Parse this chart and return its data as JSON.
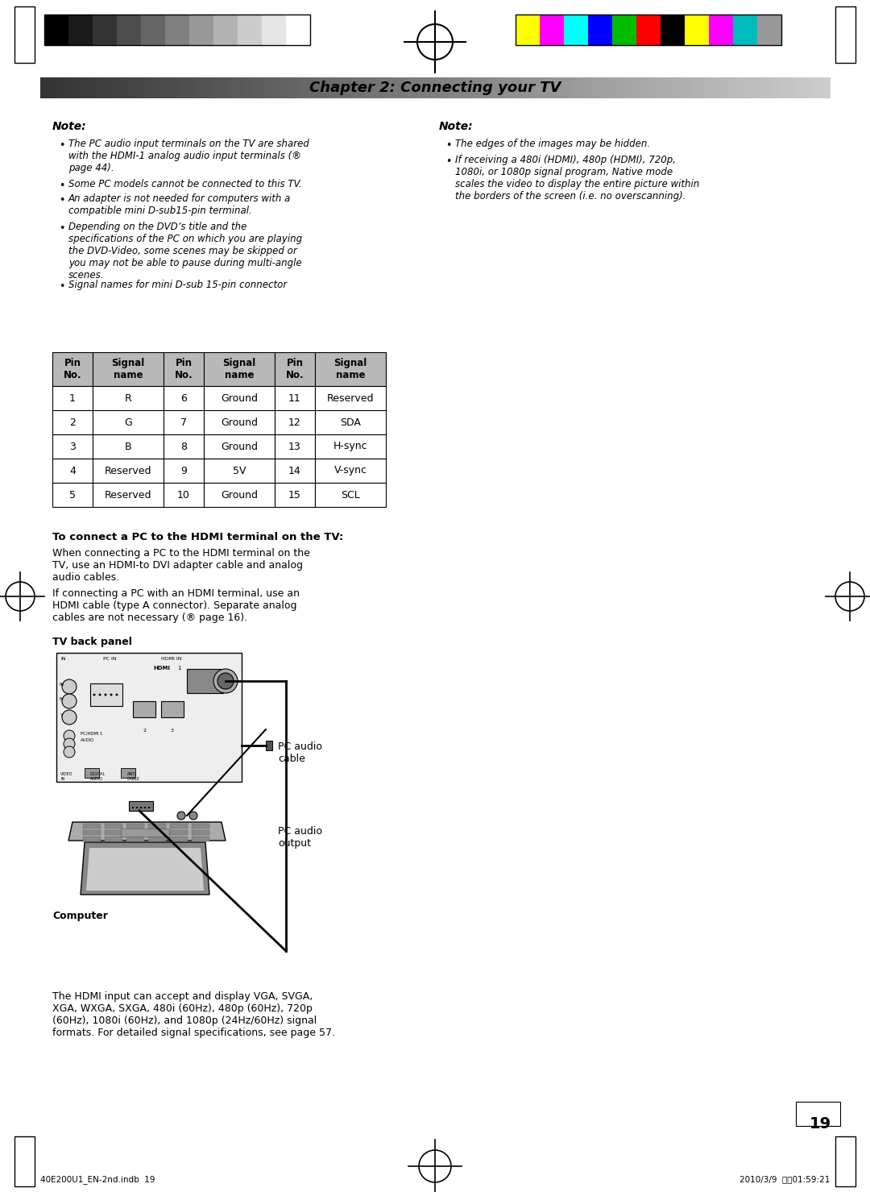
{
  "page_bg": "#ffffff",
  "chapter_title": "Chapter 2: Connecting your TV",
  "note_left_title": "Note:",
  "note_left_bullets": [
    "The PC audio input terminals on the TV are shared\nwith the HDMI-1 analog audio input terminals (®\npage 44).",
    "Some PC models cannot be connected to this TV.",
    "An adapter is not needed for computers with a\ncompatible mini D-sub15-pin terminal.",
    "Depending on the DVD’s title and the\nspecifications of the PC on which you are playing\nthe DVD-Video, some scenes may be skipped or\nyou may not be able to pause during multi-angle\nscenes.",
    "Signal names for mini D-sub 15-pin connector"
  ],
  "note_right_title": "Note:",
  "note_right_bullets": [
    "The edges of the images may be hidden.",
    "If receiving a 480i (HDMI), 480p (HDMI), 720p,\n1080i, or 1080p signal program, Native mode\nscales the video to display the entire picture within\nthe borders of the screen (i.e. no overscanning)."
  ],
  "table_header_bg": "#b8b8b8",
  "table_data": [
    [
      "1",
      "R",
      "6",
      "Ground",
      "11",
      "Reserved"
    ],
    [
      "2",
      "G",
      "7",
      "Ground",
      "12",
      "SDA"
    ],
    [
      "3",
      "B",
      "8",
      "Ground",
      "13",
      "H-sync"
    ],
    [
      "4",
      "Reserved",
      "9",
      "5V",
      "14",
      "V-sync"
    ],
    [
      "5",
      "Reserved",
      "10",
      "Ground",
      "15",
      "SCL"
    ]
  ],
  "hdmi_section_title": "To connect a PC to the HDMI terminal on the TV:",
  "hdmi_para1": "When connecting a PC to the HDMI terminal on the\nTV, use an HDMI-to DVI adapter cable and analog\naudio cables.",
  "hdmi_para2": "If connecting a PC with an HDMI terminal, use an\nHDMI cable (type A connector). Separate analog\ncables are not necessary (® page 16).",
  "tv_back_panel_label": "TV back panel",
  "computer_label": "Computer",
  "pc_audio_cable_label": "PC audio\ncable",
  "pc_audio_output_label": "PC audio\noutput",
  "bottom_para": "The HDMI input can accept and display VGA, SVGA,\nXGA, WXGA, SXGA, 480i (60Hz), 480p (60Hz), 720p\n(60Hz), 1080i (60Hz), and 1080p (24Hz/60Hz) signal\nformats. For detailed signal specifications, see page 57.",
  "page_number": "19",
  "footer_left": "40E200U1_EN-2nd.indb  19",
  "footer_right": "2010/3/9  下午01:59:21",
  "color_bars_left": [
    "#000000",
    "#1a1a1a",
    "#333333",
    "#4d4d4d",
    "#666666",
    "#808080",
    "#999999",
    "#b3b3b3",
    "#cccccc",
    "#e6e6e6",
    "#ffffff"
  ],
  "color_bars_right": [
    "#ffff00",
    "#ff00ff",
    "#00ffff",
    "#0000ff",
    "#00bb00",
    "#ff0000",
    "#000000",
    "#ffff00",
    "#ff00ff",
    "#00bbbb",
    "#999999"
  ]
}
